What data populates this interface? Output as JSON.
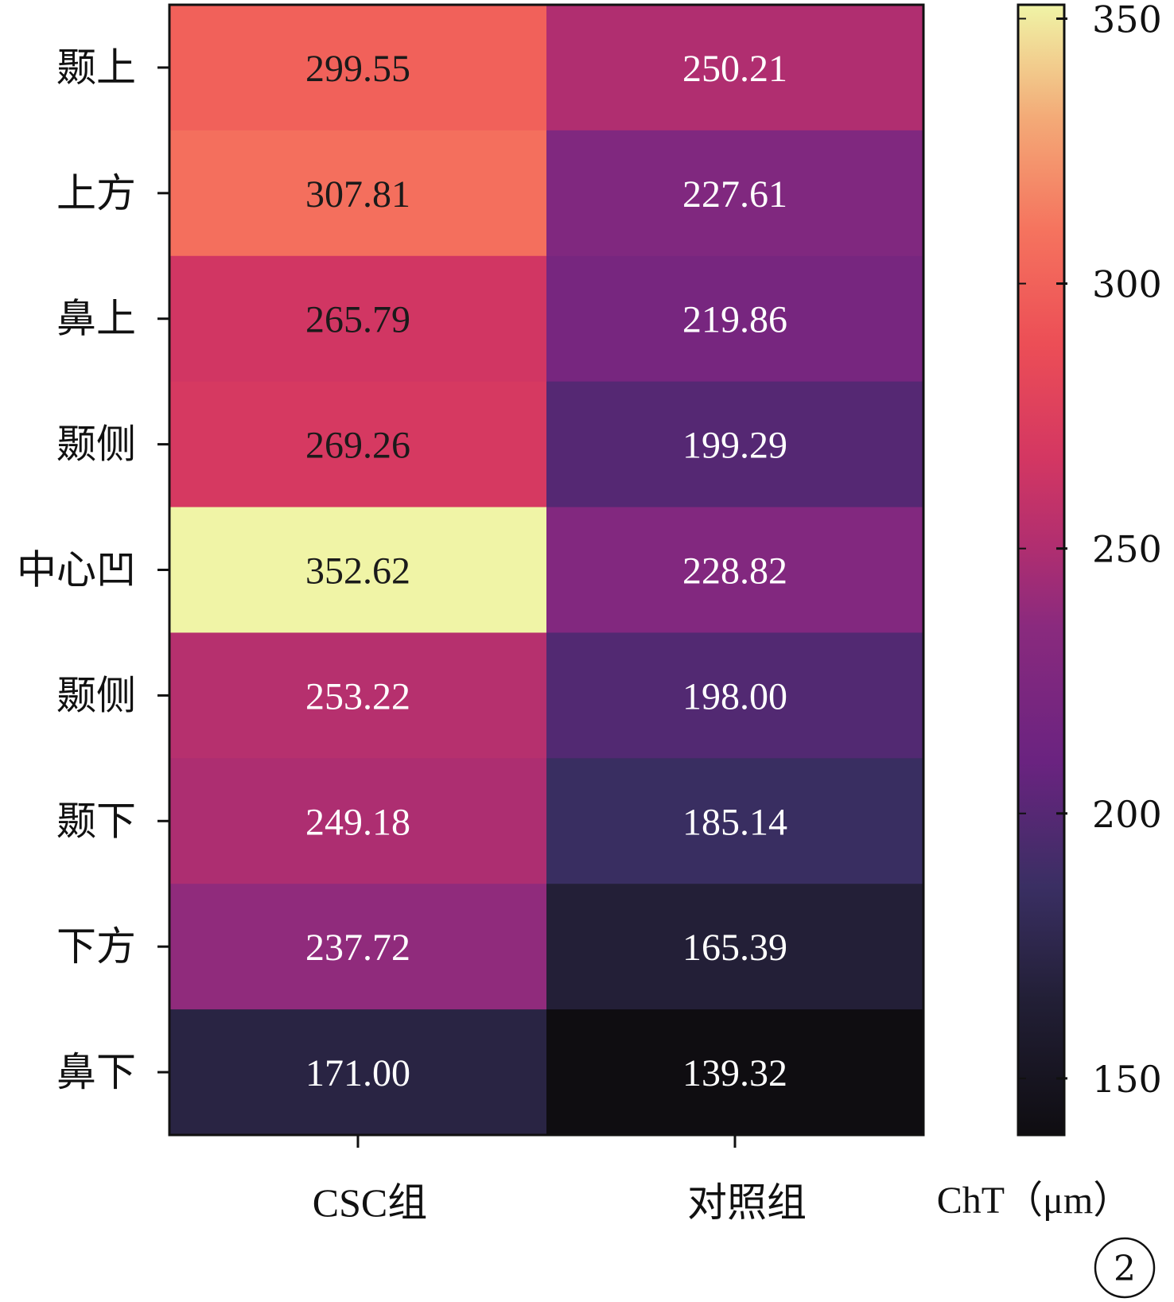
{
  "chart_data": {
    "type": "heatmap",
    "rows": [
      "颞上",
      "上方",
      "鼻上",
      "颞侧",
      "中心凹",
      "颞侧",
      "颞下",
      "下方",
      "鼻下"
    ],
    "columns": [
      "CSC组",
      "对照组"
    ],
    "values": [
      [
        299.55,
        250.21
      ],
      [
        307.81,
        227.61
      ],
      [
        265.79,
        219.86
      ],
      [
        269.26,
        199.29
      ],
      [
        352.62,
        228.82
      ],
      [
        253.22,
        198.0
      ],
      [
        249.18,
        185.14
      ],
      [
        237.72,
        165.39
      ],
      [
        171.0,
        139.32
      ]
    ],
    "value_labels": [
      [
        "299.55",
        "250.21"
      ],
      [
        "307.81",
        "227.61"
      ],
      [
        "265.79",
        "219.86"
      ],
      [
        "269.26",
        "199.29"
      ],
      [
        "352.62",
        "228.82"
      ],
      [
        "253.22",
        "198.00"
      ],
      [
        "249.18",
        "185.14"
      ],
      [
        "237.72",
        "165.39"
      ],
      [
        "171.00",
        "139.32"
      ]
    ],
    "colormap": "magma",
    "colorbar": {
      "label": "ChT（μm）",
      "range": [
        139.32,
        352.62
      ],
      "ticks": [
        150,
        200,
        250,
        300,
        350
      ]
    }
  },
  "panel_marker": "2"
}
